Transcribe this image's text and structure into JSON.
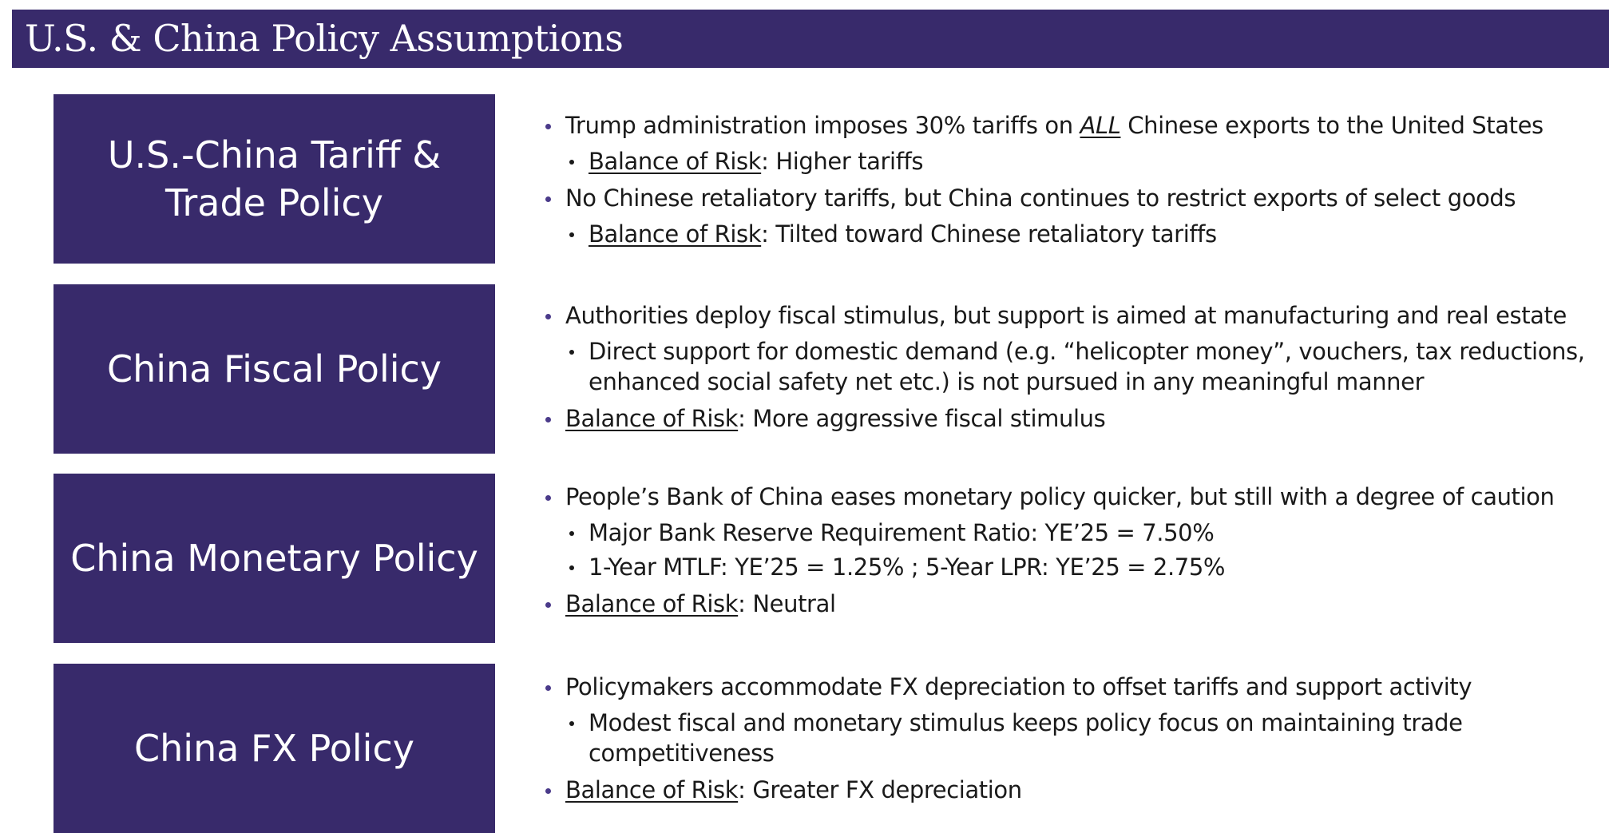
{
  "header": {
    "title": "U.S. & China Policy Assumptions"
  },
  "sections": [
    {
      "label_line1": "U.S.-China Tariff &",
      "label_line2": "Trade Policy",
      "bullets": {
        "b1_pre": "Trump administration imposes 30% tariffs on ",
        "b1_em": "ALL",
        "b1_post": " Chinese exports to the United States",
        "b1_sub_term": "Balance of Risk",
        "b1_sub_rest": ": Higher tariffs",
        "b2": "No Chinese retaliatory tariffs, but China continues to restrict exports of select goods",
        "b2_sub_term": "Balance of Risk",
        "b2_sub_rest": ": Tilted toward Chinese retaliatory tariffs"
      }
    },
    {
      "label_line1": "China Fiscal Policy",
      "bullets": {
        "b1": "Authorities deploy fiscal stimulus, but support is aimed at manufacturing and real estate",
        "b1_sub_line1": "Direct support for domestic demand (e.g. “helicopter money”, vouchers, tax reductions,",
        "b1_sub_line2": "enhanced social safety net etc.) is not pursued in any meaningful manner",
        "b2_term": "Balance of Risk",
        "b2_rest": ": More aggressive fiscal stimulus"
      }
    },
    {
      "label_line1": "China Monetary Policy",
      "bullets": {
        "b1": "People’s Bank of China eases monetary policy quicker, but still with a degree of caution",
        "b1_sub1": "Major Bank Reserve Requirement Ratio: YE’25 = 7.50%",
        "b1_sub2": "1-Year MTLF: YE’25 = 1.25% ; 5-Year LPR: YE’25 = 2.75%",
        "b2_term": "Balance of Risk",
        "b2_rest": ": Neutral"
      }
    },
    {
      "label_line1": "China FX Policy",
      "bullets": {
        "b1": "Policymakers accommodate FX depreciation to offset tariffs and support activity",
        "b1_sub_line1": "Modest fiscal and monetary stimulus keeps policy focus on maintaining trade",
        "b1_sub_line2": "competitiveness",
        "b2_term": "Balance of Risk",
        "b2_rest": ": Greater FX depreciation"
      }
    }
  ],
  "colors": {
    "primary": "#382a6b",
    "text": "#1a1a1a",
    "bullet": "#4a3a8a"
  }
}
